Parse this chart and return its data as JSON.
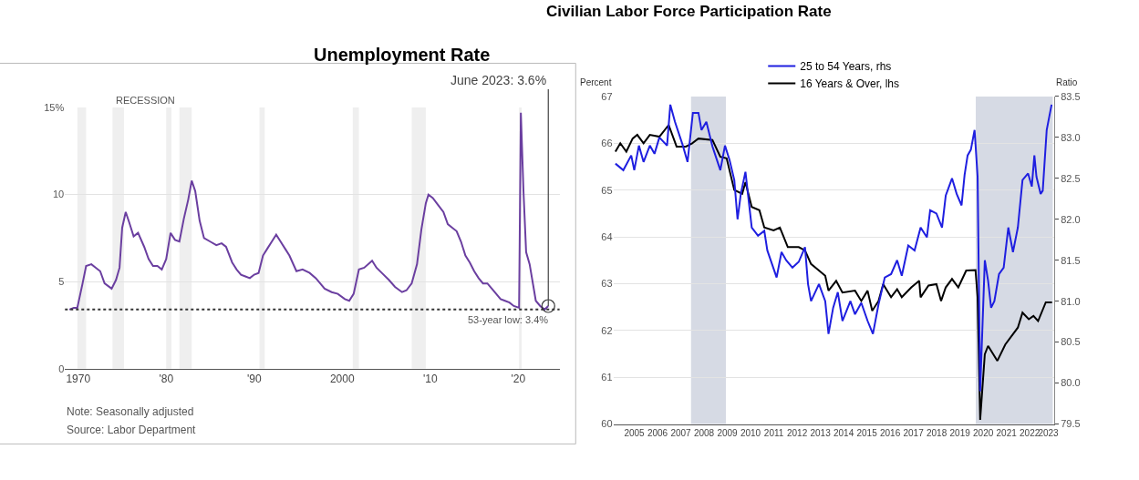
{
  "chart_data": [
    {
      "type": "line",
      "title": "Unemployment Rate",
      "x": [
        1969.0,
        1969.5,
        1969.9,
        1970.5,
        1970.9,
        1971.5,
        1972.0,
        1972.5,
        1973.0,
        1973.8,
        1974.3,
        1974.7,
        1975.0,
        1975.4,
        1975.8,
        1976.3,
        1976.8,
        1977.5,
        1978.0,
        1978.5,
        1979.0,
        1979.5,
        1980.0,
        1980.5,
        1981.0,
        1981.5,
        1982.0,
        1982.5,
        1982.9,
        1983.3,
        1983.8,
        1984.3,
        1985.0,
        1985.7,
        1986.3,
        1986.8,
        1987.5,
        1988.0,
        1988.5,
        1989.0,
        1989.5,
        1990.0,
        1990.5,
        1991.0,
        1991.5,
        1992.0,
        1992.5,
        1993.0,
        1993.5,
        1994.0,
        1994.8,
        1995.5,
        1996.3,
        1997.0,
        1997.5,
        1998.0,
        1998.8,
        1999.5,
        2000.3,
        2000.8,
        2001.3,
        2001.9,
        2002.5,
        2003.4,
        2003.9,
        2004.5,
        2005.3,
        2006.0,
        2006.8,
        2007.3,
        2007.9,
        2008.5,
        2009.0,
        2009.5,
        2009.8,
        2010.3,
        2010.9,
        2011.5,
        2012.0,
        2012.5,
        2013.0,
        2013.5,
        2014.0,
        2014.5,
        2015.0,
        2015.5,
        2016.0,
        2016.5,
        2017.0,
        2017.5,
        2018.0,
        2018.5,
        2019.0,
        2019.5,
        2020.1,
        2020.3,
        2020.6,
        2020.9,
        2021.3,
        2021.7,
        2022.0,
        2022.5,
        2023.0,
        2023.42
      ],
      "series": [
        {
          "color": "#6b3fa0",
          "values": [
            3.4,
            3.5,
            3.5,
            4.9,
            5.9,
            6.0,
            5.8,
            5.6,
            4.9,
            4.6,
            5.1,
            5.8,
            8.1,
            9.0,
            8.4,
            7.6,
            7.8,
            7.0,
            6.3,
            5.9,
            5.9,
            5.7,
            6.3,
            7.8,
            7.4,
            7.3,
            8.6,
            9.7,
            10.8,
            10.2,
            8.5,
            7.5,
            7.3,
            7.1,
            7.2,
            7.0,
            6.1,
            5.7,
            5.4,
            5.3,
            5.2,
            5.4,
            5.5,
            6.5,
            6.9,
            7.3,
            7.7,
            7.3,
            6.9,
            6.5,
            5.6,
            5.7,
            5.5,
            5.2,
            4.9,
            4.6,
            4.4,
            4.3,
            4.0,
            3.9,
            4.3,
            5.7,
            5.8,
            6.2,
            5.8,
            5.5,
            5.1,
            4.7,
            4.4,
            4.5,
            4.9,
            6.0,
            8.0,
            9.5,
            10.0,
            9.8,
            9.4,
            9.0,
            8.3,
            8.1,
            7.9,
            7.3,
            6.5,
            6.1,
            5.6,
            5.2,
            4.9,
            4.9,
            4.6,
            4.3,
            4.0,
            3.9,
            3.8,
            3.6,
            3.5,
            14.7,
            10.2,
            6.7,
            6.0,
            4.8,
            3.9,
            3.6,
            3.4,
            3.6
          ]
        }
      ],
      "xlim": [
        1968.5,
        2024.7
      ],
      "ylim": [
        0,
        15
      ],
      "xticks": [
        {
          "value": 1970,
          "label": "1970"
        },
        {
          "value": 1980,
          "label": "'80"
        },
        {
          "value": 1990,
          "label": "'90"
        },
        {
          "value": 2000,
          "label": "2000"
        },
        {
          "value": 2010,
          "label": "'10"
        },
        {
          "value": 2020,
          "label": "'20"
        }
      ],
      "yticks": [
        0,
        5,
        10,
        {
          "value": 15,
          "label": "15%"
        }
      ],
      "grid": "y",
      "ref_lines": [
        {
          "axis": "y",
          "value": 3.4,
          "label": "53-year low: 3.4%",
          "line_style": "dotted",
          "color": "#333333"
        }
      ],
      "bands": [
        {
          "axis": "x",
          "from": 1969.9,
          "to": 1970.9,
          "color": "#efefef"
        },
        {
          "axis": "x",
          "from": 1973.9,
          "to": 1975.2,
          "color": "#efefef"
        },
        {
          "axis": "x",
          "from": 1980.0,
          "to": 1980.6,
          "color": "#efefef"
        },
        {
          "axis": "x",
          "from": 1981.5,
          "to": 1982.9,
          "color": "#efefef"
        },
        {
          "axis": "x",
          "from": 1990.6,
          "to": 1991.2,
          "color": "#efefef"
        },
        {
          "axis": "x",
          "from": 2001.2,
          "to": 2001.9,
          "color": "#efefef"
        },
        {
          "axis": "x",
          "from": 2007.9,
          "to": 2009.5,
          "color": "#efefef"
        },
        {
          "axis": "x",
          "from": 2020.1,
          "to": 2020.4,
          "color": "#efefef"
        }
      ],
      "annotations": [
        "RECESSION",
        {
          "text": "June 2023: 3.6%",
          "x": 2023.42,
          "y": 3.6
        },
        "Note: Seasonally adjusted",
        "Source: Labor Department"
      ]
    },
    {
      "type": "line",
      "title": "Civilian Labor Force Participation Rate",
      "ylabel": "Percent",
      "y2label": "Ratio",
      "legend": "top",
      "series": [
        {
          "name": "25 to 54 Years, rhs",
          "color": "#1f1fe0",
          "axis": "y2",
          "x": [
            2004.69,
            2005.03,
            2005.37,
            2005.5,
            2005.7,
            2005.9,
            2006.17,
            2006.37,
            2006.58,
            2006.91,
            2007.05,
            2007.25,
            2007.59,
            2007.79,
            2008.02,
            2008.26,
            2008.39,
            2008.6,
            2008.86,
            2009.2,
            2009.4,
            2009.6,
            2009.8,
            2009.94,
            2010.08,
            2010.28,
            2010.55,
            2010.82,
            2011.09,
            2011.22,
            2011.62,
            2011.83,
            2012.03,
            2012.3,
            2012.57,
            2012.84,
            2012.97,
            2013.1,
            2013.44,
            2013.71,
            2013.85,
            2014.05,
            2014.25,
            2014.45,
            2014.79,
            2014.99,
            2015.26,
            2015.53,
            2015.76,
            2016.0,
            2016.27,
            2016.54,
            2016.8,
            2017.0,
            2017.28,
            2017.55,
            2017.81,
            2018.08,
            2018.22,
            2018.49,
            2018.73,
            2018.89,
            2019.16,
            2019.36,
            2019.57,
            2019.7,
            2019.83,
            2019.97,
            2020.13,
            2020.26,
            2020.37,
            2020.57,
            2020.71,
            2020.84,
            2020.98,
            2021.18,
            2021.38,
            2021.58,
            2021.78,
            2021.99,
            2022.19,
            2022.43,
            2022.59,
            2022.7,
            2022.79,
            2022.97,
            2023.06,
            2023.23,
            2023.44
          ],
          "values": [
            82.68,
            82.6,
            82.78,
            82.6,
            82.9,
            82.7,
            82.9,
            82.8,
            83.0,
            82.9,
            83.4,
            83.19,
            82.9,
            82.7,
            83.3,
            83.3,
            83.09,
            83.19,
            82.89,
            82.6,
            82.9,
            82.72,
            82.48,
            82.0,
            82.31,
            82.58,
            81.9,
            81.8,
            81.86,
            81.62,
            81.29,
            81.6,
            81.5,
            81.41,
            81.48,
            81.66,
            81.21,
            81.0,
            81.21,
            81.0,
            80.6,
            80.92,
            81.11,
            80.76,
            81.0,
            80.84,
            80.98,
            80.76,
            80.6,
            80.96,
            81.29,
            81.33,
            81.5,
            81.31,
            81.68,
            81.62,
            81.9,
            81.78,
            82.11,
            82.07,
            81.9,
            82.29,
            82.5,
            82.31,
            82.17,
            82.54,
            82.78,
            82.85,
            83.09,
            82.52,
            79.9,
            81.5,
            81.25,
            80.92,
            81.0,
            81.33,
            81.41,
            81.9,
            81.6,
            81.9,
            82.48,
            82.56,
            82.4,
            82.78,
            82.52,
            82.31,
            82.35,
            83.09,
            83.4
          ]
        },
        {
          "name": "16 Years & Over, lhs",
          "color": "#000000",
          "x": [
            2004.69,
            2004.9,
            2005.16,
            2005.43,
            2005.63,
            2005.9,
            2006.17,
            2006.58,
            2006.98,
            2007.32,
            2007.72,
            2007.99,
            2008.26,
            2008.86,
            2009.2,
            2009.47,
            2009.8,
            2010.14,
            2010.28,
            2010.55,
            2010.88,
            2011.09,
            2011.49,
            2011.76,
            2012.1,
            2012.57,
            2012.84,
            2013.1,
            2013.37,
            2013.71,
            2013.85,
            2014.18,
            2014.45,
            2014.99,
            2015.26,
            2015.53,
            2015.73,
            2016.0,
            2016.2,
            2016.54,
            2016.8,
            2017.0,
            2017.41,
            2017.75,
            2017.81,
            2018.15,
            2018.49,
            2018.69,
            2018.89,
            2019.16,
            2019.43,
            2019.77,
            2020.17,
            2020.26,
            2020.37,
            2020.57,
            2020.71,
            2021.11,
            2021.45,
            2021.99,
            2022.19,
            2022.46,
            2022.66,
            2022.86,
            2023.19,
            2023.46
          ],
          "values": [
            65.82,
            66.0,
            65.82,
            66.1,
            66.18,
            66.0,
            66.18,
            66.14,
            66.39,
            65.93,
            65.93,
            66.0,
            66.1,
            66.07,
            65.71,
            65.68,
            65.0,
            64.92,
            65.17,
            64.64,
            64.57,
            64.2,
            64.14,
            64.2,
            63.78,
            63.78,
            63.71,
            63.42,
            63.31,
            63.17,
            62.85,
            63.06,
            62.81,
            62.85,
            62.63,
            62.85,
            62.42,
            62.63,
            62.99,
            62.71,
            62.88,
            62.71,
            62.92,
            63.06,
            62.71,
            62.96,
            62.99,
            62.63,
            62.92,
            63.1,
            62.92,
            63.28,
            63.29,
            62.71,
            60.09,
            61.49,
            61.67,
            61.35,
            61.7,
            62.06,
            62.38,
            62.24,
            62.31,
            62.2,
            62.6,
            62.6
          ]
        }
      ],
      "xlim": [
        2004.6,
        2023.55
      ],
      "ylim": [
        60,
        67
      ],
      "y2lim": [
        79.5,
        83.5
      ],
      "xticks": [
        {
          "value": 2005.5,
          "label": "2005"
        },
        {
          "value": 2006.5,
          "label": "2006"
        },
        {
          "value": 2007.5,
          "label": "2007"
        },
        {
          "value": 2008.5,
          "label": "2008"
        },
        {
          "value": 2009.5,
          "label": "2009"
        },
        {
          "value": 2010.5,
          "label": "2010"
        },
        {
          "value": 2011.5,
          "label": "2011"
        },
        {
          "value": 2012.5,
          "label": "2012"
        },
        {
          "value": 2013.5,
          "label": "2013"
        },
        {
          "value": 2014.5,
          "label": "2014"
        },
        {
          "value": 2015.5,
          "label": "2015"
        },
        {
          "value": 2016.5,
          "label": "2016"
        },
        {
          "value": 2017.5,
          "label": "2017"
        },
        {
          "value": 2018.5,
          "label": "2018"
        },
        {
          "value": 2019.5,
          "label": "2019"
        },
        {
          "value": 2020.5,
          "label": "2020"
        },
        {
          "value": 2021.5,
          "label": "2021"
        },
        {
          "value": 2022.5,
          "label": "2022"
        },
        {
          "value": 2023.3,
          "label": "2023"
        }
      ],
      "yticks": [
        60,
        61,
        62,
        63,
        64,
        65,
        66,
        67
      ],
      "y2ticks": [
        79.5,
        {
          "value": 80,
          "label": "80.0"
        },
        80.5,
        {
          "value": 81,
          "label": "81.0"
        },
        81.5,
        {
          "value": 82,
          "label": "82.0"
        },
        82.5,
        {
          "value": 83,
          "label": "83.0"
        },
        83.5
      ],
      "grid": "y",
      "bands": [
        {
          "axis": "x",
          "from": 2007.94,
          "to": 2009.44,
          "color": "#d6dae4"
        },
        {
          "axis": "x",
          "from": 2020.18,
          "to": 2023.49,
          "color": "#d6dae4"
        }
      ]
    }
  ]
}
